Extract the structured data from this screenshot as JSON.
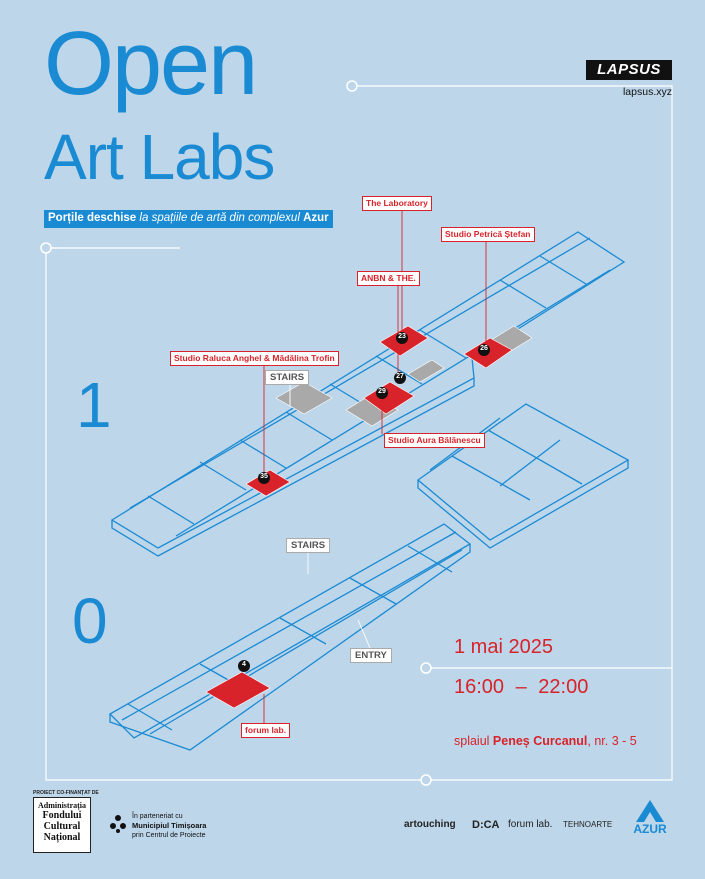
{
  "title": {
    "line1": "Open",
    "line2": "Art Labs"
  },
  "subtitle": {
    "part1": "Porțile deschise",
    "part2": "la spațiile de artă din complexul",
    "part3": "Azur"
  },
  "brand": {
    "name": "LAPSUS",
    "url": "lapsus.xyz"
  },
  "floors": {
    "upper": "1",
    "ground": "0"
  },
  "studios": [
    {
      "label": "The Laboratory",
      "number": "23"
    },
    {
      "label": "Studio Petrică Ștefan",
      "number": "26"
    },
    {
      "label": "ANBN & THE.",
      "number": "27"
    },
    {
      "label": "Studio Raluca Anghel & Mădălina Trofin",
      "number": "35"
    },
    {
      "label": "Studio Aura Bălănescu",
      "number": "29"
    },
    {
      "label": "forum lab.",
      "number": "4"
    }
  ],
  "markers": {
    "stairs_upper": "STAIRS",
    "stairs_ground": "STAIRS",
    "entry": "ENTRY"
  },
  "event": {
    "date": "1 mai 2025",
    "time": "16:00 – 22:00",
    "address_pre": "splaiul",
    "address_street": "Peneș Curcanul",
    "address_post": ", nr. 3 - 5"
  },
  "footer": {
    "funder_caption": "PROIECT CO-FINANȚAT DE",
    "funder_lines": [
      "Administrația",
      "Fondului",
      "Cultural",
      "Național"
    ],
    "partner_intro": "În parteneriat cu",
    "partner_name": "Municipiul Timișoara",
    "partner_sub": "prin Centrul de Proiecte",
    "logos": [
      "artouching",
      "D:CA",
      "forum lab.",
      "TEHNOARTE"
    ],
    "azur": "AZUR"
  },
  "colors": {
    "background": "#bdd6ea",
    "accent_blue": "#1a8ad3",
    "accent_red": "#d8232a"
  }
}
